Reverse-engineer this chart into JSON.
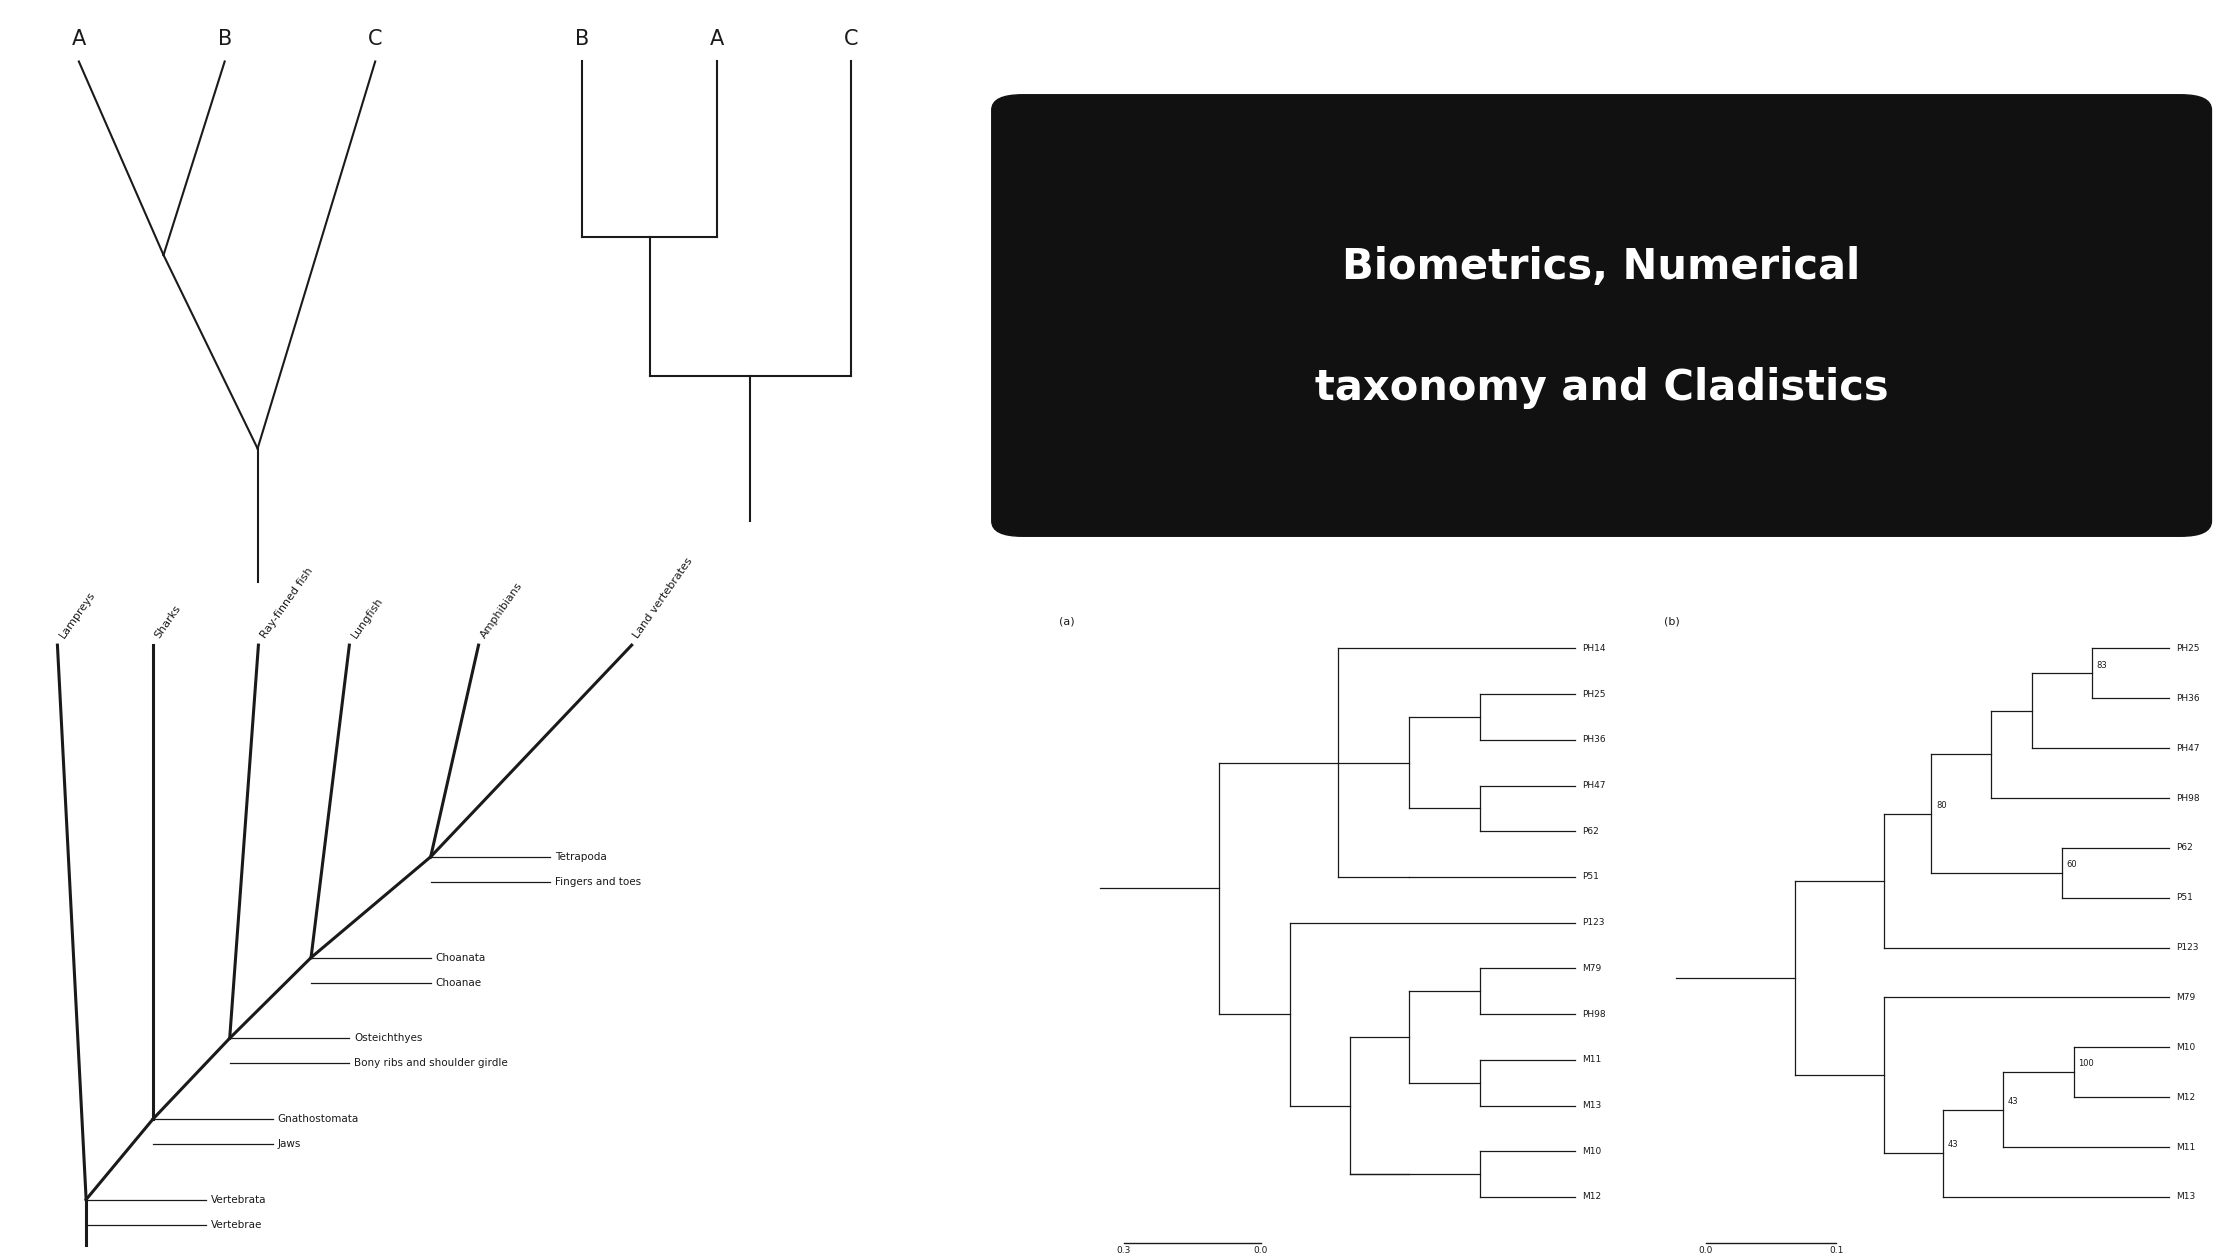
{
  "bg_color": "#ffffff",
  "line_color": "#1a1a1a",
  "title_line1": "Biometrics, Numerical",
  "title_line2": "taxonomy and Cladistics",
  "tree1_labels": [
    "A",
    "B",
    "C"
  ],
  "tree2_labels": [
    "B",
    "A",
    "C"
  ],
  "vertebrate_taxa": [
    "Lampreys",
    "Sharks",
    "Ray-finned fish",
    "Lungfish",
    "Amphibians",
    "Land vertebrates"
  ],
  "vertebrate_node_labels": [
    [
      "Vertebrata",
      "Vertebrae"
    ],
    [
      "Gnathostomata",
      "Jaws"
    ],
    [
      "Osteichthyes",
      "Bony ribs and shoulder girdle"
    ],
    [
      "Choanata",
      "Choanae"
    ],
    [
      "Tetrapoda",
      "Fingers and toes"
    ]
  ],
  "phylo_a_taxa": [
    "PH14",
    "PH25",
    "PH36",
    "PH47",
    "P62",
    "P51",
    "P123",
    "M79",
    "PH98",
    "M11",
    "M13",
    "M10",
    "M12"
  ],
  "phylo_b_taxa": [
    "PH25",
    "PH36",
    "PH47",
    "PH98",
    "P62",
    "P51",
    "P123",
    "M79",
    "M10",
    "M12",
    "M11",
    "M13"
  ],
  "scale_a_left": "0.3",
  "scale_a_right": "0.0",
  "scale_b_left": "0.0",
  "scale_b_right": "0.1"
}
